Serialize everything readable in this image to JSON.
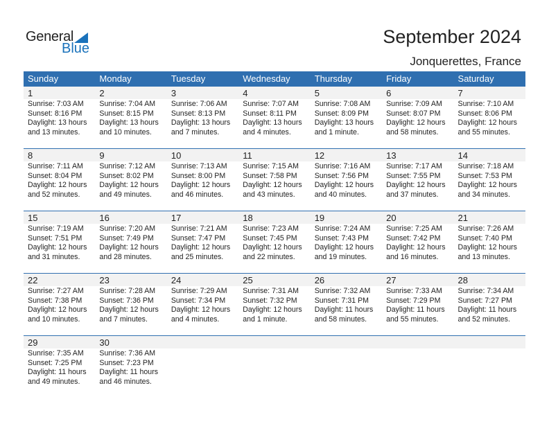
{
  "logo": {
    "general": "General",
    "blue": "Blue"
  },
  "title": "September 2024",
  "location": "Jonquerettes, France",
  "colors": {
    "header": "#2f6fb0",
    "brand": "#1a72bb"
  },
  "weekdays": [
    "Sunday",
    "Monday",
    "Tuesday",
    "Wednesday",
    "Thursday",
    "Friday",
    "Saturday"
  ],
  "days": [
    {
      "day": "1",
      "sunrise": "Sunrise: 7:03 AM",
      "sunset": "Sunset: 8:16 PM",
      "daylight": "Daylight: 13 hours",
      "minutes": "and 13 minutes."
    },
    {
      "day": "2",
      "sunrise": "Sunrise: 7:04 AM",
      "sunset": "Sunset: 8:15 PM",
      "daylight": "Daylight: 13 hours",
      "minutes": "and 10 minutes."
    },
    {
      "day": "3",
      "sunrise": "Sunrise: 7:06 AM",
      "sunset": "Sunset: 8:13 PM",
      "daylight": "Daylight: 13 hours",
      "minutes": "and 7 minutes."
    },
    {
      "day": "4",
      "sunrise": "Sunrise: 7:07 AM",
      "sunset": "Sunset: 8:11 PM",
      "daylight": "Daylight: 13 hours",
      "minutes": "and 4 minutes."
    },
    {
      "day": "5",
      "sunrise": "Sunrise: 7:08 AM",
      "sunset": "Sunset: 8:09 PM",
      "daylight": "Daylight: 13 hours",
      "minutes": "and 1 minute."
    },
    {
      "day": "6",
      "sunrise": "Sunrise: 7:09 AM",
      "sunset": "Sunset: 8:07 PM",
      "daylight": "Daylight: 12 hours",
      "minutes": "and 58 minutes."
    },
    {
      "day": "7",
      "sunrise": "Sunrise: 7:10 AM",
      "sunset": "Sunset: 8:06 PM",
      "daylight": "Daylight: 12 hours",
      "minutes": "and 55 minutes."
    },
    {
      "day": "8",
      "sunrise": "Sunrise: 7:11 AM",
      "sunset": "Sunset: 8:04 PM",
      "daylight": "Daylight: 12 hours",
      "minutes": "and 52 minutes."
    },
    {
      "day": "9",
      "sunrise": "Sunrise: 7:12 AM",
      "sunset": "Sunset: 8:02 PM",
      "daylight": "Daylight: 12 hours",
      "minutes": "and 49 minutes."
    },
    {
      "day": "10",
      "sunrise": "Sunrise: 7:13 AM",
      "sunset": "Sunset: 8:00 PM",
      "daylight": "Daylight: 12 hours",
      "minutes": "and 46 minutes."
    },
    {
      "day": "11",
      "sunrise": "Sunrise: 7:15 AM",
      "sunset": "Sunset: 7:58 PM",
      "daylight": "Daylight: 12 hours",
      "minutes": "and 43 minutes."
    },
    {
      "day": "12",
      "sunrise": "Sunrise: 7:16 AM",
      "sunset": "Sunset: 7:56 PM",
      "daylight": "Daylight: 12 hours",
      "minutes": "and 40 minutes."
    },
    {
      "day": "13",
      "sunrise": "Sunrise: 7:17 AM",
      "sunset": "Sunset: 7:55 PM",
      "daylight": "Daylight: 12 hours",
      "minutes": "and 37 minutes."
    },
    {
      "day": "14",
      "sunrise": "Sunrise: 7:18 AM",
      "sunset": "Sunset: 7:53 PM",
      "daylight": "Daylight: 12 hours",
      "minutes": "and 34 minutes."
    },
    {
      "day": "15",
      "sunrise": "Sunrise: 7:19 AM",
      "sunset": "Sunset: 7:51 PM",
      "daylight": "Daylight: 12 hours",
      "minutes": "and 31 minutes."
    },
    {
      "day": "16",
      "sunrise": "Sunrise: 7:20 AM",
      "sunset": "Sunset: 7:49 PM",
      "daylight": "Daylight: 12 hours",
      "minutes": "and 28 minutes."
    },
    {
      "day": "17",
      "sunrise": "Sunrise: 7:21 AM",
      "sunset": "Sunset: 7:47 PM",
      "daylight": "Daylight: 12 hours",
      "minutes": "and 25 minutes."
    },
    {
      "day": "18",
      "sunrise": "Sunrise: 7:23 AM",
      "sunset": "Sunset: 7:45 PM",
      "daylight": "Daylight: 12 hours",
      "minutes": "and 22 minutes."
    },
    {
      "day": "19",
      "sunrise": "Sunrise: 7:24 AM",
      "sunset": "Sunset: 7:43 PM",
      "daylight": "Daylight: 12 hours",
      "minutes": "and 19 minutes."
    },
    {
      "day": "20",
      "sunrise": "Sunrise: 7:25 AM",
      "sunset": "Sunset: 7:42 PM",
      "daylight": "Daylight: 12 hours",
      "minutes": "and 16 minutes."
    },
    {
      "day": "21",
      "sunrise": "Sunrise: 7:26 AM",
      "sunset": "Sunset: 7:40 PM",
      "daylight": "Daylight: 12 hours",
      "minutes": "and 13 minutes."
    },
    {
      "day": "22",
      "sunrise": "Sunrise: 7:27 AM",
      "sunset": "Sunset: 7:38 PM",
      "daylight": "Daylight: 12 hours",
      "minutes": "and 10 minutes."
    },
    {
      "day": "23",
      "sunrise": "Sunrise: 7:28 AM",
      "sunset": "Sunset: 7:36 PM",
      "daylight": "Daylight: 12 hours",
      "minutes": "and 7 minutes."
    },
    {
      "day": "24",
      "sunrise": "Sunrise: 7:29 AM",
      "sunset": "Sunset: 7:34 PM",
      "daylight": "Daylight: 12 hours",
      "minutes": "and 4 minutes."
    },
    {
      "day": "25",
      "sunrise": "Sunrise: 7:31 AM",
      "sunset": "Sunset: 7:32 PM",
      "daylight": "Daylight: 12 hours",
      "minutes": "and 1 minute."
    },
    {
      "day": "26",
      "sunrise": "Sunrise: 7:32 AM",
      "sunset": "Sunset: 7:31 PM",
      "daylight": "Daylight: 11 hours",
      "minutes": "and 58 minutes."
    },
    {
      "day": "27",
      "sunrise": "Sunrise: 7:33 AM",
      "sunset": "Sunset: 7:29 PM",
      "daylight": "Daylight: 11 hours",
      "minutes": "and 55 minutes."
    },
    {
      "day": "28",
      "sunrise": "Sunrise: 7:34 AM",
      "sunset": "Sunset: 7:27 PM",
      "daylight": "Daylight: 11 hours",
      "minutes": "and 52 minutes."
    },
    {
      "day": "29",
      "sunrise": "Sunrise: 7:35 AM",
      "sunset": "Sunset: 7:25 PM",
      "daylight": "Daylight: 11 hours",
      "minutes": "and 49 minutes."
    },
    {
      "day": "30",
      "sunrise": "Sunrise: 7:36 AM",
      "sunset": "Sunset: 7:23 PM",
      "daylight": "Daylight: 11 hours",
      "minutes": "and 46 minutes."
    }
  ]
}
